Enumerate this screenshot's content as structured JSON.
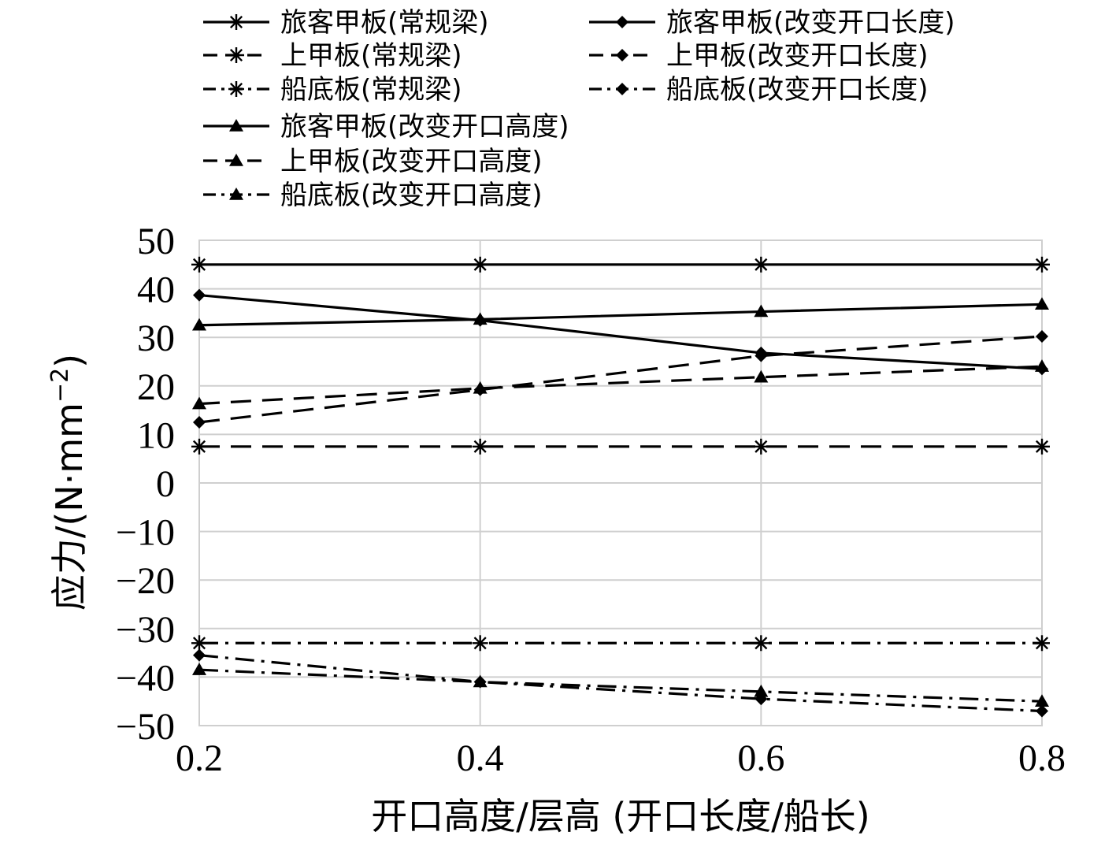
{
  "chart_data": {
    "type": "line",
    "title": "",
    "xlabel": "开口高度/层高 (开口长度/船长)",
    "ylabel": "应力/(N·mm",
    "ylabel_sup": "−2",
    "ylabel_close": ")",
    "x": [
      0.2,
      0.4,
      0.6,
      0.8
    ],
    "x_tick_labels": [
      "0.2",
      "0.4",
      "0.6",
      "0.8"
    ],
    "xlim": [
      0.2,
      0.8
    ],
    "ylim": [
      -50,
      50
    ],
    "y_ticks": [
      50,
      40,
      30,
      20,
      10,
      0,
      -10,
      -20,
      -30,
      -40,
      -50
    ],
    "y_tick_labels": [
      "50",
      "40",
      "30",
      "20",
      "10",
      "0",
      "−10",
      "−20",
      "−30",
      "−40",
      "−50"
    ],
    "grid": true,
    "legend_position": "top",
    "series": [
      {
        "name": "旅客甲板(常规梁)",
        "values": [
          45,
          45,
          45,
          45
        ],
        "marker": "star",
        "line": "solid"
      },
      {
        "name": "旅客甲板(改变开口长度)",
        "values": [
          38.7,
          33.5,
          26.8,
          23.5
        ],
        "marker": "diamond",
        "line": "solid"
      },
      {
        "name": "上甲板(常规梁)",
        "values": [
          7.5,
          7.5,
          7.5,
          7.5
        ],
        "marker": "star",
        "line": "dashed"
      },
      {
        "name": "上甲板(改变开口长度)",
        "values": [
          12.5,
          19.2,
          26.2,
          30.2
        ],
        "marker": "diamond",
        "line": "dashed"
      },
      {
        "name": "船底板(常规梁)",
        "values": [
          -33,
          -33,
          -33,
          -33
        ],
        "marker": "star",
        "line": "dashdot"
      },
      {
        "name": "船底板(改变开口长度)",
        "values": [
          -35.5,
          -41,
          -44.5,
          -47
        ],
        "marker": "diamond",
        "line": "dashdot"
      },
      {
        "name": "旅客甲板(改变开口高度)",
        "values": [
          32.5,
          33.7,
          35.3,
          36.8
        ],
        "marker": "triangle",
        "line": "solid"
      },
      {
        "name": "上甲板(改变开口高度)",
        "values": [
          16.3,
          19.5,
          21.8,
          24
        ],
        "marker": "triangle",
        "line": "dashed"
      },
      {
        "name": "船底板(改变开口高度)",
        "values": [
          -38.5,
          -41,
          -43,
          -45
        ],
        "marker": "triangle",
        "line": "dashdot"
      }
    ]
  }
}
